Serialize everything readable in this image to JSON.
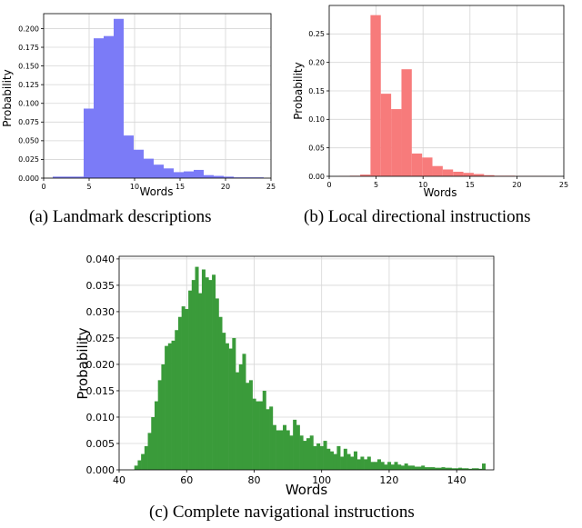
{
  "chart_data": [
    {
      "type": "bar",
      "caption": "(a) Landmark descriptions",
      "xlabel": "Words",
      "ylabel": "Probability",
      "xlim": [
        0,
        25
      ],
      "ylim": [
        0,
        0.22
      ],
      "xticks": [
        "0",
        "5",
        "10",
        "15",
        "20",
        "25"
      ],
      "xtick_values": [
        0,
        5,
        10,
        15,
        20,
        25
      ],
      "yticks": [
        "0.000",
        "0.025",
        "0.050",
        "0.075",
        "0.100",
        "0.125",
        "0.150",
        "0.175",
        "0.200"
      ],
      "ytick_values": [
        0,
        0.025,
        0.05,
        0.075,
        0.1,
        0.125,
        0.15,
        0.175,
        0.2
      ],
      "grid": true,
      "color": "#7b7bf7",
      "bins": [
        {
          "x0": 1.0,
          "x1": 2.2,
          "y": 0.002
        },
        {
          "x0": 2.2,
          "x1": 3.3,
          "y": 0.002
        },
        {
          "x0": 3.3,
          "x1": 4.4,
          "y": 0.002
        },
        {
          "x0": 4.4,
          "x1": 5.5,
          "y": 0.093
        },
        {
          "x0": 5.5,
          "x1": 6.6,
          "y": 0.187
        },
        {
          "x0": 6.6,
          "x1": 7.7,
          "y": 0.19
        },
        {
          "x0": 7.7,
          "x1": 8.8,
          "y": 0.213
        },
        {
          "x0": 8.8,
          "x1": 9.9,
          "y": 0.057
        },
        {
          "x0": 9.9,
          "x1": 11.0,
          "y": 0.038
        },
        {
          "x0": 11.0,
          "x1": 12.1,
          "y": 0.026
        },
        {
          "x0": 12.1,
          "x1": 13.2,
          "y": 0.018
        },
        {
          "x0": 13.2,
          "x1": 14.3,
          "y": 0.013
        },
        {
          "x0": 14.3,
          "x1": 15.4,
          "y": 0.008
        },
        {
          "x0": 15.4,
          "x1": 16.5,
          "y": 0.009
        },
        {
          "x0": 16.5,
          "x1": 17.6,
          "y": 0.011
        },
        {
          "x0": 17.6,
          "x1": 18.7,
          "y": 0.004
        },
        {
          "x0": 18.7,
          "x1": 19.8,
          "y": 0.003
        },
        {
          "x0": 19.8,
          "x1": 20.9,
          "y": 0.002
        },
        {
          "x0": 20.9,
          "x1": 22.0,
          "y": 0.001
        },
        {
          "x0": 22.0,
          "x1": 23.1,
          "y": 0.001
        },
        {
          "x0": 23.1,
          "x1": 24.2,
          "y": 0.001
        }
      ]
    },
    {
      "type": "bar",
      "caption": "(b) Local directional instructions",
      "xlabel": "Words",
      "ylabel": "Probability",
      "xlim": [
        0,
        25
      ],
      "ylim": [
        0,
        0.3
      ],
      "xticks": [
        "0",
        "5",
        "10",
        "15",
        "20",
        "25"
      ],
      "xtick_values": [
        0,
        5,
        10,
        15,
        20,
        25
      ],
      "yticks": [
        "0.00",
        "0.05",
        "0.10",
        "0.15",
        "0.20",
        "0.25"
      ],
      "ytick_values": [
        0,
        0.05,
        0.1,
        0.15,
        0.2,
        0.25
      ],
      "grid": true,
      "color": "#f77b7b",
      "bins": [
        {
          "x0": 1.0,
          "x1": 2.2,
          "y": 0.0005
        },
        {
          "x0": 2.2,
          "x1": 3.3,
          "y": 0.001
        },
        {
          "x0": 3.3,
          "x1": 4.4,
          "y": 0.003
        },
        {
          "x0": 4.4,
          "x1": 5.5,
          "y": 0.283
        },
        {
          "x0": 5.5,
          "x1": 6.6,
          "y": 0.145
        },
        {
          "x0": 6.6,
          "x1": 7.7,
          "y": 0.118
        },
        {
          "x0": 7.7,
          "x1": 8.8,
          "y": 0.188
        },
        {
          "x0": 8.8,
          "x1": 9.9,
          "y": 0.04
        },
        {
          "x0": 9.9,
          "x1": 11.0,
          "y": 0.033
        },
        {
          "x0": 11.0,
          "x1": 12.1,
          "y": 0.018
        },
        {
          "x0": 12.1,
          "x1": 13.2,
          "y": 0.012
        },
        {
          "x0": 13.2,
          "x1": 14.3,
          "y": 0.008
        },
        {
          "x0": 14.3,
          "x1": 15.4,
          "y": 0.006
        },
        {
          "x0": 15.4,
          "x1": 16.5,
          "y": 0.004
        },
        {
          "x0": 16.5,
          "x1": 17.6,
          "y": 0.002
        },
        {
          "x0": 17.6,
          "x1": 18.7,
          "y": 0.001
        },
        {
          "x0": 18.7,
          "x1": 19.8,
          "y": 0.001
        },
        {
          "x0": 19.8,
          "x1": 20.9,
          "y": 0.0005
        },
        {
          "x0": 20.9,
          "x1": 22.0,
          "y": 0.0005
        },
        {
          "x0": 22.0,
          "x1": 23.1,
          "y": 0.0005
        },
        {
          "x0": 23.1,
          "x1": 24.2,
          "y": 0.0003
        }
      ]
    },
    {
      "type": "bar",
      "caption": "(c) Complete navigational instructions",
      "xlabel": "Words",
      "ylabel": "Probability",
      "xlim": [
        40,
        151
      ],
      "ylim": [
        0,
        0.0405
      ],
      "xticks": [
        "40",
        "60",
        "80",
        "100",
        "120",
        "140"
      ],
      "xtick_values": [
        40,
        60,
        80,
        100,
        120,
        140
      ],
      "yticks": [
        "0.000",
        "0.005",
        "0.010",
        "0.015",
        "0.020",
        "0.025",
        "0.030",
        "0.035",
        "0.040"
      ],
      "ytick_values": [
        0,
        0.005,
        0.01,
        0.015,
        0.02,
        0.025,
        0.03,
        0.035,
        0.04
      ],
      "grid": true,
      "color": "#3a9b3a",
      "x": [
        45,
        46,
        47,
        48,
        49,
        50,
        51,
        52,
        53,
        54,
        55,
        56,
        57,
        58,
        59,
        60,
        61,
        62,
        63,
        64,
        65,
        66,
        67,
        68,
        69,
        70,
        71,
        72,
        73,
        74,
        75,
        76,
        77,
        78,
        79,
        80,
        81,
        82,
        83,
        84,
        85,
        86,
        87,
        88,
        89,
        90,
        91,
        92,
        93,
        94,
        95,
        96,
        97,
        98,
        99,
        100,
        101,
        102,
        103,
        104,
        105,
        106,
        107,
        108,
        109,
        110,
        111,
        112,
        113,
        114,
        115,
        116,
        117,
        118,
        119,
        120,
        121,
        122,
        123,
        124,
        125,
        126,
        127,
        128,
        129,
        130,
        131,
        132,
        133,
        134,
        135,
        136,
        137,
        138,
        139,
        140,
        141,
        142,
        143,
        144,
        145,
        146,
        147,
        148
      ],
      "values": [
        0.0008,
        0.0018,
        0.003,
        0.0045,
        0.007,
        0.01,
        0.013,
        0.017,
        0.02,
        0.0235,
        0.024,
        0.0245,
        0.0265,
        0.029,
        0.031,
        0.0305,
        0.034,
        0.036,
        0.0385,
        0.0335,
        0.038,
        0.0365,
        0.036,
        0.037,
        0.0325,
        0.029,
        0.026,
        0.024,
        0.023,
        0.025,
        0.0185,
        0.02,
        0.022,
        0.0165,
        0.017,
        0.0135,
        0.013,
        0.013,
        0.015,
        0.0115,
        0.012,
        0.0085,
        0.0075,
        0.0075,
        0.0085,
        0.0075,
        0.0065,
        0.0095,
        0.0085,
        0.0065,
        0.0055,
        0.006,
        0.0065,
        0.0045,
        0.005,
        0.0045,
        0.0055,
        0.004,
        0.0035,
        0.003,
        0.0045,
        0.0025,
        0.004,
        0.003,
        0.0025,
        0.0035,
        0.002,
        0.0025,
        0.002,
        0.0025,
        0.0015,
        0.0015,
        0.002,
        0.0015,
        0.001,
        0.0015,
        0.001,
        0.0015,
        0.001,
        0.0008,
        0.0012,
        0.0008,
        0.0008,
        0.0006,
        0.0006,
        0.0008,
        0.0005,
        0.0005,
        0.0005,
        0.0004,
        0.0004,
        0.0005,
        0.0004,
        0.0004,
        0.0003,
        0.0003,
        0.0004,
        0.0003,
        0.0003,
        0.0002,
        0.0003,
        0.0003,
        0.0002,
        0.0012
      ]
    }
  ]
}
